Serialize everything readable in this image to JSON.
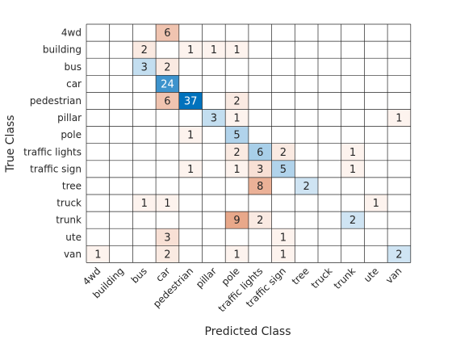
{
  "chart_data": {
    "type": "heatmap",
    "xlabel": "Predicted Class",
    "ylabel": "True Class",
    "classes": [
      "4wd",
      "building",
      "bus",
      "car",
      "pedestrian",
      "pillar",
      "pole",
      "traffic lights",
      "traffic sign",
      "tree",
      "truck",
      "trunk",
      "ute",
      "van"
    ],
    "cells": [
      {
        "row": "4wd",
        "col": "car",
        "value": 6,
        "diagonal": false
      },
      {
        "row": "building",
        "col": "bus",
        "value": 2,
        "diagonal": false
      },
      {
        "row": "building",
        "col": "pedestrian",
        "value": 1,
        "diagonal": false
      },
      {
        "row": "building",
        "col": "pillar",
        "value": 1,
        "diagonal": false
      },
      {
        "row": "building",
        "col": "pole",
        "value": 1,
        "diagonal": false
      },
      {
        "row": "bus",
        "col": "bus",
        "value": 3,
        "diagonal": true
      },
      {
        "row": "bus",
        "col": "car",
        "value": 2,
        "diagonal": false
      },
      {
        "row": "car",
        "col": "car",
        "value": 24,
        "diagonal": true
      },
      {
        "row": "pedestrian",
        "col": "car",
        "value": 6,
        "diagonal": false
      },
      {
        "row": "pedestrian",
        "col": "pedestrian",
        "value": 37,
        "diagonal": true
      },
      {
        "row": "pedestrian",
        "col": "pole",
        "value": 2,
        "diagonal": false
      },
      {
        "row": "pillar",
        "col": "pillar",
        "value": 3,
        "diagonal": true
      },
      {
        "row": "pillar",
        "col": "pole",
        "value": 1,
        "diagonal": false
      },
      {
        "row": "pillar",
        "col": "van",
        "value": 1,
        "diagonal": false
      },
      {
        "row": "pole",
        "col": "pedestrian",
        "value": 1,
        "diagonal": false
      },
      {
        "row": "pole",
        "col": "pole",
        "value": 5,
        "diagonal": true
      },
      {
        "row": "traffic lights",
        "col": "pole",
        "value": 2,
        "diagonal": false
      },
      {
        "row": "traffic lights",
        "col": "traffic lights",
        "value": 6,
        "diagonal": true
      },
      {
        "row": "traffic lights",
        "col": "traffic sign",
        "value": 2,
        "diagonal": false
      },
      {
        "row": "traffic lights",
        "col": "trunk",
        "value": 1,
        "diagonal": false
      },
      {
        "row": "traffic sign",
        "col": "pedestrian",
        "value": 1,
        "diagonal": false
      },
      {
        "row": "traffic sign",
        "col": "pole",
        "value": 1,
        "diagonal": false
      },
      {
        "row": "traffic sign",
        "col": "traffic lights",
        "value": 3,
        "diagonal": false
      },
      {
        "row": "traffic sign",
        "col": "traffic sign",
        "value": 5,
        "diagonal": true
      },
      {
        "row": "traffic sign",
        "col": "trunk",
        "value": 1,
        "diagonal": false
      },
      {
        "row": "tree",
        "col": "traffic lights",
        "value": 8,
        "diagonal": false
      },
      {
        "row": "tree",
        "col": "tree",
        "value": 2,
        "diagonal": true
      },
      {
        "row": "truck",
        "col": "bus",
        "value": 1,
        "diagonal": false
      },
      {
        "row": "truck",
        "col": "car",
        "value": 1,
        "diagonal": false
      },
      {
        "row": "truck",
        "col": "ute",
        "value": 1,
        "diagonal": false
      },
      {
        "row": "trunk",
        "col": "pole",
        "value": 9,
        "diagonal": false
      },
      {
        "row": "trunk",
        "col": "traffic lights",
        "value": 2,
        "diagonal": false
      },
      {
        "row": "trunk",
        "col": "trunk",
        "value": 2,
        "diagonal": true
      },
      {
        "row": "ute",
        "col": "car",
        "value": 3,
        "diagonal": false
      },
      {
        "row": "ute",
        "col": "traffic sign",
        "value": 1,
        "diagonal": false
      },
      {
        "row": "van",
        "col": "4wd",
        "value": 1,
        "diagonal": false
      },
      {
        "row": "van",
        "col": "car",
        "value": 2,
        "diagonal": false
      },
      {
        "row": "van",
        "col": "pole",
        "value": 1,
        "diagonal": false
      },
      {
        "row": "van",
        "col": "traffic sign",
        "value": 1,
        "diagonal": false
      },
      {
        "row": "van",
        "col": "van",
        "value": 2,
        "diagonal": true
      }
    ],
    "grid": true,
    "colors": {
      "diagonal_low": "#e1eef8",
      "diagonal_high": "#0072bd",
      "offdiagonal_low": "#fdf3ee",
      "offdiagonal_high": "#e8a88a",
      "grid": "#262626",
      "text_dark": "#262626",
      "text_light": "#ffffff"
    }
  }
}
